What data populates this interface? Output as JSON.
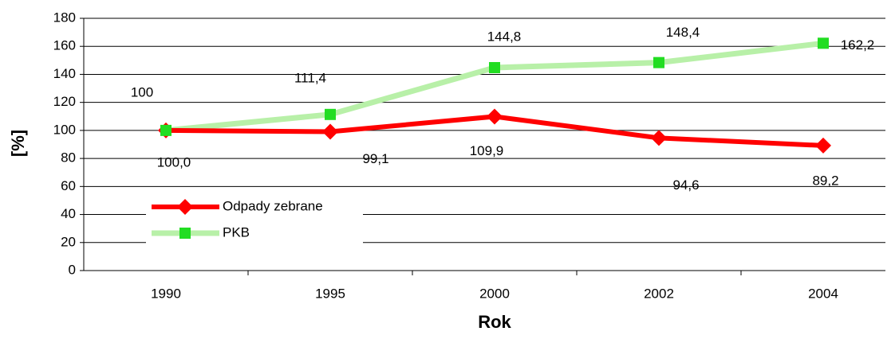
{
  "chart_data": {
    "type": "line",
    "x_label": "Rok",
    "y_label": "[%]",
    "categories": [
      "1990",
      "1995",
      "2000",
      "2002",
      "2004"
    ],
    "series": [
      {
        "name": "Odpady zebrane",
        "color": "#ff0000",
        "marker": "diamond",
        "values": [
          100,
          99.1,
          109.9,
          94.6,
          89.2
        ],
        "value_labels": [
          "100,0",
          "99,1",
          "109,9",
          "94,6",
          "89,2"
        ]
      },
      {
        "name": "PKB",
        "color": "#b8f0a8",
        "marker_color": "#22dd22",
        "marker": "square",
        "values": [
          100,
          111.4,
          144.8,
          148.4,
          162.2
        ],
        "value_labels": [
          "100",
          "111,4",
          "144,8",
          "148,4",
          "162,2"
        ]
      }
    ],
    "ylim": [
      0,
      180
    ],
    "yticks": [
      0,
      20,
      40,
      60,
      80,
      100,
      120,
      140,
      160,
      180
    ],
    "grid": true,
    "legend": "lower left"
  }
}
